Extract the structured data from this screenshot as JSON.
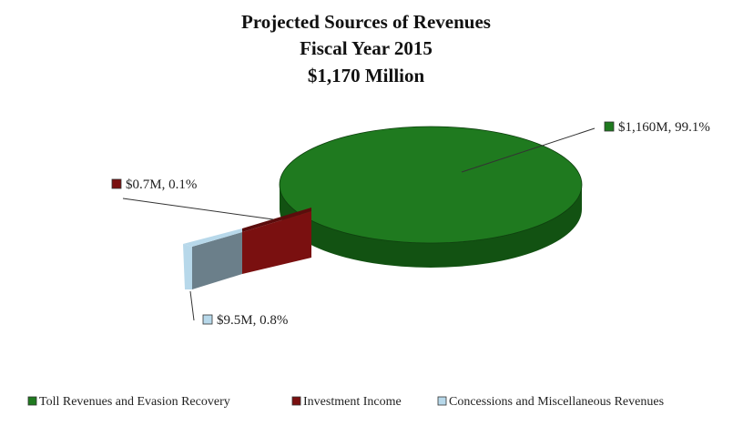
{
  "chart_data": {
    "type": "pie",
    "title": "Projected Sources of  Revenues",
    "subtitle": "Fiscal Year 2015",
    "total_label": "$1,170 Million",
    "three_d": true,
    "exploded_slices": [
      "Concessions and Miscellaneous Revenues",
      "Investment Income"
    ],
    "legend_position": "bottom",
    "slices": [
      {
        "name": "Toll Revenues and Evasion Recovery",
        "value": 1160,
        "percent": 99.1,
        "label": "$1,160M, 99.1%",
        "color": "#1f7a1f",
        "side_color": "#125212"
      },
      {
        "name": "Investment Income",
        "value": 0.7,
        "percent": 0.1,
        "label": "$0.7M, 0.1%",
        "color": "#7a1010",
        "side_color": "#5c0c0c"
      },
      {
        "name": "Concessions and Miscellaneous Revenues",
        "value": 9.5,
        "percent": 0.8,
        "label": "$9.5M, 0.8%",
        "color": "#b7d8ea",
        "side_color": "#6b7f8a"
      }
    ]
  }
}
